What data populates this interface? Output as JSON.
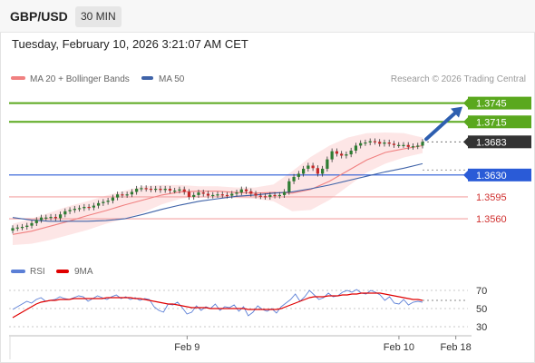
{
  "header": {
    "symbol": "GBP/USD",
    "timeframe": "30 MIN"
  },
  "timestamp": "Tuesday, February 10, 2026 3:21:07 AM CET",
  "legend": {
    "ma20_label": "MA 20 + Bollinger Bands",
    "ma50_label": "MA 50",
    "credit": "Research © 2026 Trading Central"
  },
  "colors": {
    "candle_up": "#2e7d32",
    "candle_down": "#c62828",
    "ma20": "#f08080",
    "bands_fill": "#fde2e2",
    "ma50": "#3f63a8",
    "resistance": "#5aa81e",
    "pivot": "#2a5bd7",
    "support": "#f3a3a3",
    "current_price": "#333333",
    "arrow": "#2e5fb0",
    "rsi": "#5b7fd6",
    "rsi_ma": "#e00000"
  },
  "chart_data": [
    {
      "type": "candlestick",
      "title": "",
      "y_range": [
        1.3518,
        1.3772
      ],
      "x_range": [
        0,
        1
      ],
      "x_tick_labels": [
        {
          "label": "Feb 9",
          "at": 0.385
        },
        {
          "label": "Feb 10",
          "at": 0.843
        },
        {
          "label": "Feb 18",
          "at": 0.966
        }
      ],
      "candles_close": [
        1.3545,
        1.3546,
        1.3547,
        1.3549,
        1.3553,
        1.3558,
        1.3562,
        1.3562,
        1.3563,
        1.3561,
        1.3567,
        1.3572,
        1.3574,
        1.3576,
        1.3577,
        1.3579,
        1.3578,
        1.3581,
        1.3585,
        1.3587,
        1.3589,
        1.3594,
        1.3599,
        1.3598,
        1.3599,
        1.3603,
        1.3608,
        1.3609,
        1.3608,
        1.3607,
        1.3608,
        1.3606,
        1.3608,
        1.3605,
        1.3605,
        1.3607,
        1.3603,
        1.3595,
        1.3598,
        1.3602,
        1.36,
        1.3597,
        1.3598,
        1.3599,
        1.3598,
        1.3597,
        1.36,
        1.3602,
        1.3607,
        1.3604,
        1.36,
        1.3597,
        1.3596,
        1.3595,
        1.3598,
        1.3597,
        1.3598,
        1.3603,
        1.362,
        1.3627,
        1.3632,
        1.364,
        1.3645,
        1.3641,
        1.3632,
        1.364,
        1.3655,
        1.3668,
        1.3664,
        1.3661,
        1.3663,
        1.3669,
        1.3677,
        1.3681,
        1.3682,
        1.3684,
        1.3683,
        1.368,
        1.3682,
        1.368,
        1.3678,
        1.3678,
        1.3678,
        1.3675,
        1.3676,
        1.3677,
        1.3683
      ],
      "moving_averages": [
        {
          "name": "MA 20",
          "role": "ma20",
          "values_sampled": [
            1.3535,
            1.354,
            1.3548,
            1.3556,
            1.3565,
            1.3573,
            1.3582,
            1.359,
            1.3598,
            1.3603,
            1.3604,
            1.3604,
            1.3602,
            1.3601,
            1.3602,
            1.3601,
            1.3607,
            1.362,
            1.3637,
            1.3654,
            1.3666,
            1.3672,
            1.3677
          ]
        },
        {
          "name": "MA 50",
          "role": "ma50",
          "values_sampled": [
            1.3562,
            1.3558,
            1.3556,
            1.3556,
            1.3556,
            1.3557,
            1.356,
            1.3567,
            1.3575,
            1.3582,
            1.3588,
            1.3592,
            1.3596,
            1.3598,
            1.3601,
            1.3603,
            1.3608,
            1.3614,
            1.3621,
            1.3628,
            1.3635,
            1.3641,
            1.3648
          ]
        }
      ],
      "bollinger_upper_sampled": [
        1.3552,
        1.356,
        1.357,
        1.358,
        1.3588,
        1.3597,
        1.3605,
        1.3612,
        1.3614,
        1.3614,
        1.3612,
        1.3612,
        1.361,
        1.361,
        1.3615,
        1.3636,
        1.3659,
        1.3677,
        1.369,
        1.3697,
        1.3698,
        1.3697,
        1.369
      ],
      "bollinger_lower_sampled": [
        1.3518,
        1.352,
        1.3526,
        1.3534,
        1.3542,
        1.3552,
        1.356,
        1.357,
        1.3583,
        1.3592,
        1.3596,
        1.3596,
        1.3593,
        1.3592,
        1.3588,
        1.3572,
        1.3574,
        1.359,
        1.3612,
        1.3634,
        1.3648,
        1.3658,
        1.3665
      ],
      "levels": [
        {
          "label": "1.3745",
          "value": 1.3745,
          "role": "resistance",
          "tag_style": "green"
        },
        {
          "label": "1.3715",
          "value": 1.3715,
          "role": "resistance",
          "tag_style": "green"
        },
        {
          "label": "1.3683",
          "value": 1.3683,
          "role": "current",
          "tag_style": "dark"
        },
        {
          "label": "1.3630",
          "value": 1.363,
          "role": "pivot",
          "tag_style": "blue"
        },
        {
          "label": "1.3595",
          "value": 1.3595,
          "role": "support",
          "tag_style": "red"
        },
        {
          "label": "1.3560",
          "value": 1.356,
          "role": "support",
          "tag_style": "red"
        }
      ],
      "forecast_arrow": {
        "from": 1.3683,
        "to": 1.3745,
        "direction": "up"
      }
    },
    {
      "type": "line",
      "title": "",
      "legend": [
        "RSI",
        "9MA"
      ],
      "y_range": [
        24,
        78
      ],
      "y_ticks": [
        70,
        50,
        30
      ],
      "series": [
        {
          "name": "RSI",
          "role": "rsi",
          "values": [
            49,
            52,
            55,
            58,
            56,
            60,
            62,
            58,
            59,
            60,
            63,
            61,
            60,
            62,
            64,
            63,
            58,
            61,
            64,
            62,
            60,
            63,
            65,
            61,
            63,
            60,
            62,
            59,
            61,
            60,
            52,
            48,
            46,
            55,
            54,
            57,
            51,
            44,
            46,
            53,
            48,
            52,
            50,
            55,
            48,
            52,
            51,
            54,
            47,
            52,
            42,
            46,
            53,
            49,
            47,
            50,
            45,
            52,
            56,
            60,
            66,
            58,
            63,
            70,
            65,
            60,
            62,
            67,
            63,
            64,
            68,
            70,
            68,
            71,
            67,
            66,
            70,
            68,
            65,
            59,
            63,
            56,
            55,
            60,
            54,
            57,
            58,
            57
          ]
        },
        {
          "name": "9MA",
          "role": "rsi_ma",
          "values": [
            40,
            43,
            46,
            49,
            52,
            55,
            57,
            58,
            59,
            59,
            60,
            60,
            60,
            61,
            61,
            61,
            61,
            61,
            61,
            61,
            62,
            62,
            62,
            62,
            62,
            62,
            61,
            61,
            60,
            59,
            58,
            57,
            56,
            55,
            55,
            54,
            53,
            52,
            51,
            51,
            51,
            51,
            50,
            50,
            50,
            50,
            50,
            50,
            50,
            50,
            49,
            49,
            49,
            49,
            49,
            49,
            49,
            50,
            52,
            54,
            56,
            58,
            60,
            62,
            63,
            63,
            63,
            64,
            64,
            64,
            65,
            65,
            66,
            66,
            67,
            67,
            67,
            67,
            67,
            66,
            65,
            64,
            63,
            62,
            61,
            60,
            60,
            59
          ]
        }
      ],
      "projection_value": 59
    }
  ]
}
